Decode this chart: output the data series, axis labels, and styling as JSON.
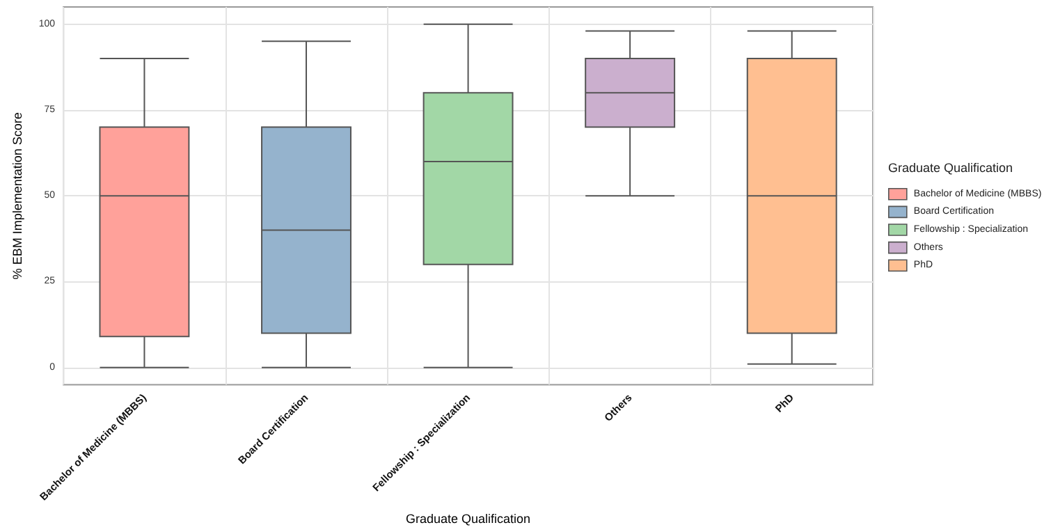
{
  "chart_data": {
    "type": "box",
    "xlabel": "Graduate Qualification",
    "ylabel": "% EBM Implementation Score",
    "legend_title": "Graduate Qualification",
    "categories": [
      "Bachelor of Medicine (MBBS)",
      "Board Certification",
      "Fellowship : Specialization",
      "Others",
      "PhD"
    ],
    "series": [
      {
        "name": "Bachelor of Medicine (MBBS)",
        "color": "#ffa19a",
        "boxes": [
          {
            "low": 0,
            "q1": 9,
            "median": 50,
            "q3": 70,
            "high": 90
          },
          null,
          null,
          null,
          null
        ]
      },
      {
        "name": "Board Certification",
        "color": "#95b3cd",
        "boxes": [
          null,
          {
            "low": 0,
            "q1": 10,
            "median": 40,
            "q3": 70,
            "high": 95
          },
          null,
          null,
          null
        ]
      },
      {
        "name": "Fellowship : Specialization",
        "color": "#a2d7a6",
        "boxes": [
          null,
          null,
          {
            "low": 0,
            "q1": 30,
            "median": 60,
            "q3": 80,
            "high": 100
          },
          null,
          null
        ]
      },
      {
        "name": "Others",
        "color": "#cbafce",
        "boxes": [
          null,
          null,
          null,
          {
            "low": 50,
            "q1": 70,
            "median": 80,
            "q3": 90,
            "high": 98
          },
          null
        ]
      },
      {
        "name": "PhD",
        "color": "#ffbf91",
        "boxes": [
          null,
          null,
          null,
          null,
          {
            "low": 1,
            "q1": 10,
            "median": 50,
            "q3": 90,
            "high": 98
          }
        ]
      }
    ],
    "ylim": [
      -5,
      105
    ],
    "yticks": [
      0,
      25,
      50,
      75,
      100
    ],
    "grid": true,
    "legend": "right"
  }
}
